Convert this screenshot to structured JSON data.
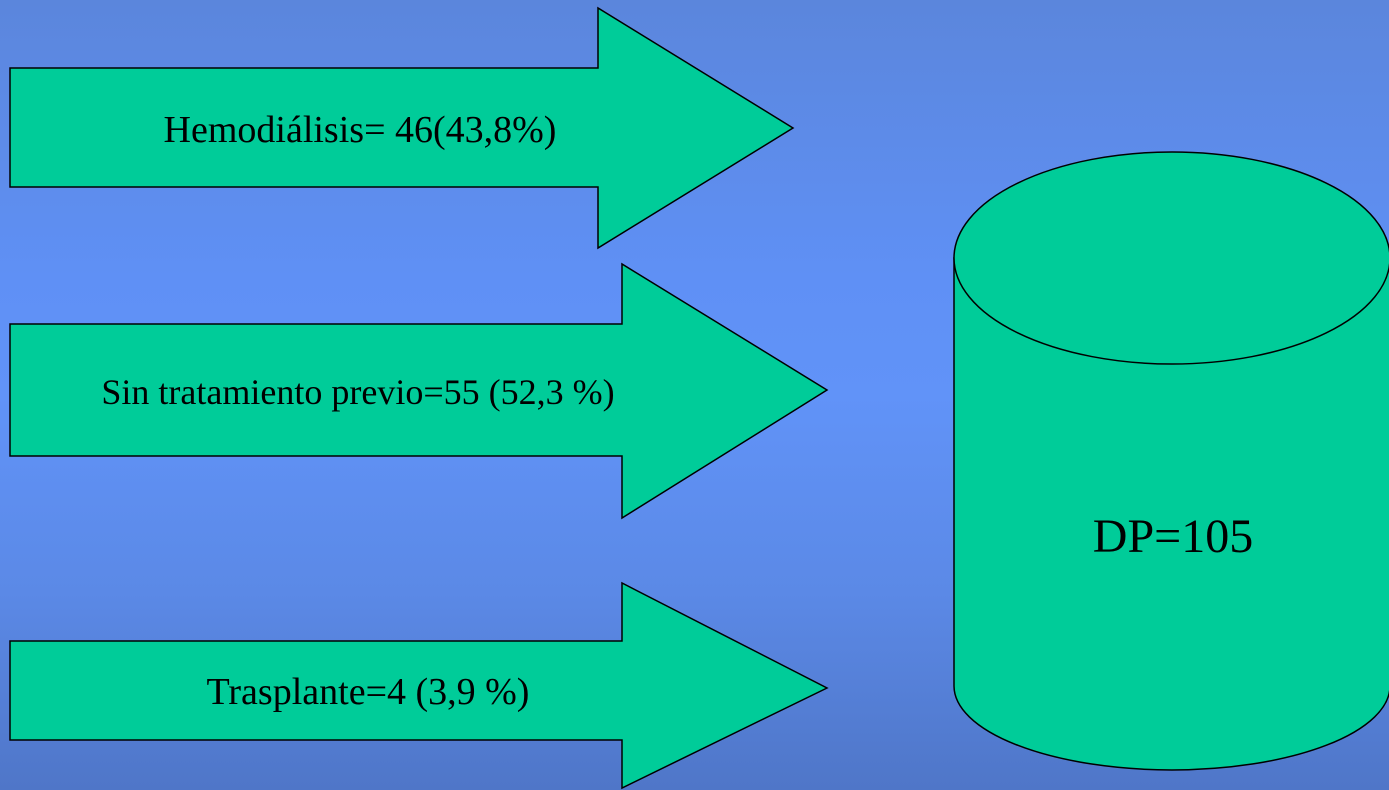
{
  "diagram": {
    "colors": {
      "shape_fill": "#00cc99",
      "shape_stroke": "#000000",
      "text": "#000000",
      "background": "#6193f8"
    },
    "arrows": [
      {
        "label": "Hemodiálisis= 46(43,8%)"
      },
      {
        "label": "Sin tratamiento previo=55 (52,3 %)"
      },
      {
        "label": "Trasplante=4 (3,9 %)"
      }
    ],
    "cylinder": {
      "label": "DP=105"
    }
  }
}
